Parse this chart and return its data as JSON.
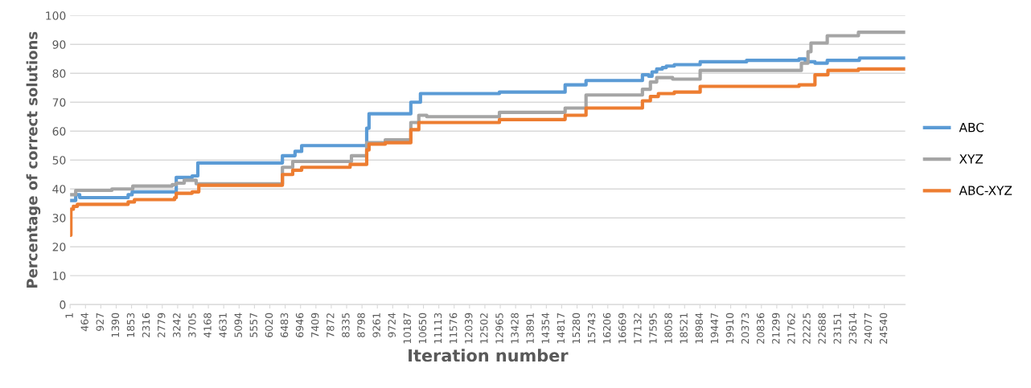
{
  "chart_data": {
    "type": "step",
    "xlabel": "Iteration number",
    "ylabel": "Percentage of correct solutions",
    "xlim": [
      1,
      25170
    ],
    "ylim": [
      0,
      100
    ],
    "yticks": [
      0,
      10,
      20,
      30,
      40,
      50,
      60,
      70,
      80,
      90,
      100
    ],
    "xticks": [
      1,
      464,
      927,
      1390,
      1853,
      2316,
      2779,
      3242,
      3705,
      4168,
      4631,
      5094,
      5557,
      6020,
      6483,
      6946,
      7409,
      7872,
      8335,
      8798,
      9261,
      9724,
      10187,
      10650,
      11113,
      11576,
      12039,
      12502,
      12965,
      13428,
      13891,
      14354,
      14817,
      15280,
      15743,
      16206,
      16669,
      17132,
      17595,
      18058,
      18521,
      18984,
      19447,
      19910,
      20373,
      20836,
      21299,
      21762,
      22225,
      22688,
      23151,
      23614,
      24077,
      24540
    ],
    "grid": "y",
    "legend": "right",
    "line_style": "solid",
    "marker": "none",
    "series": [
      {
        "name": "ABC",
        "color": "#5b9bd5",
        "x": [
          1,
          170,
          290,
          1750,
          1870,
          3200,
          3680,
          3850,
          6400,
          6780,
          6980,
          8940,
          9010,
          10270,
          10560,
          12940,
          14920,
          15550,
          17250,
          17440,
          17540,
          17680,
          17850,
          17970,
          18210,
          18990,
          20390,
          21970,
          22160,
          22450,
          22820,
          23790,
          25170
        ],
        "values": [
          36,
          38,
          37,
          38,
          39,
          44,
          44.5,
          49,
          51.5,
          53,
          55,
          61,
          66,
          70,
          73,
          73.5,
          76,
          77.5,
          79.5,
          79,
          80.5,
          81.5,
          82,
          82.5,
          83,
          84,
          84.5,
          85,
          84,
          83.5,
          84.5,
          85.3,
          85.3
        ]
      },
      {
        "name": "XYZ",
        "color": "#a5a5a5",
        "x": [
          1,
          170,
          1260,
          1890,
          3080,
          3200,
          3440,
          3800,
          6400,
          6710,
          6980,
          8480,
          8940,
          9500,
          10270,
          10510,
          10750,
          12940,
          14920,
          15550,
          17250,
          17490,
          17680,
          18160,
          18990,
          21970,
          22040,
          22240,
          22330,
          22820,
          23760,
          25170
        ],
        "values": [
          38,
          39.5,
          40,
          41,
          41.5,
          42,
          43,
          41.8,
          47.5,
          49.5,
          49.5,
          51.5,
          56,
          57,
          63,
          65.5,
          65,
          66.5,
          68,
          72.5,
          74.5,
          77,
          78.5,
          78,
          81,
          81,
          83.5,
          87.5,
          90.5,
          93,
          94.2,
          94.2
        ]
      },
      {
        "name": "ABC-XYZ",
        "color": "#ed7d31",
        "x": [
          1,
          25,
          100,
          220,
          1750,
          1940,
          3150,
          3200,
          3680,
          3880,
          6400,
          6710,
          6980,
          8440,
          8940,
          9010,
          9500,
          10270,
          10510,
          12940,
          14920,
          15550,
          17250,
          17490,
          17730,
          18210,
          18990,
          20390,
          21970,
          22450,
          22840,
          23760,
          25170
        ],
        "values": [
          24,
          33,
          34,
          34.7,
          35.5,
          36.3,
          37,
          38.5,
          39,
          41.3,
          45,
          46.5,
          47.5,
          48.5,
          53.5,
          55.5,
          56,
          60.5,
          63,
          64,
          65.5,
          68,
          70.5,
          72,
          73,
          73.5,
          75.5,
          75.5,
          76,
          79.5,
          81,
          81.5,
          81.5
        ]
      }
    ]
  }
}
